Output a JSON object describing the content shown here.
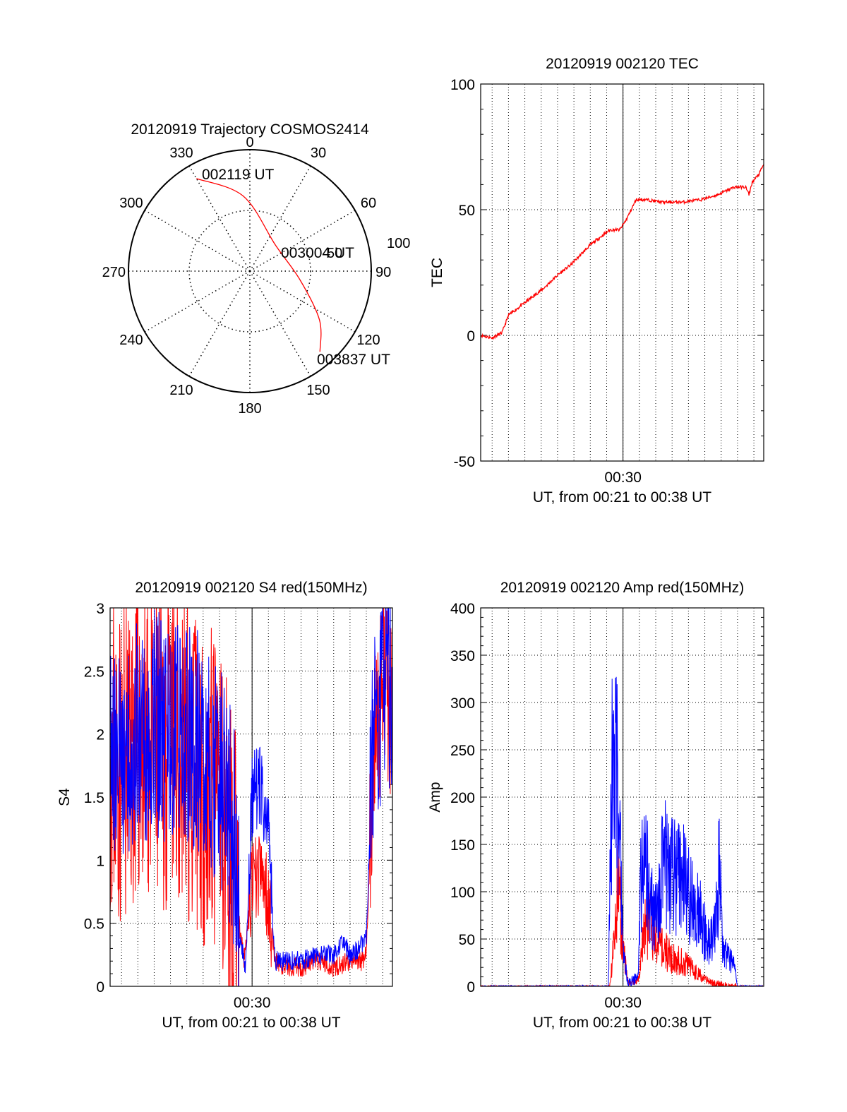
{
  "chart_data": [
    {
      "type": "polar",
      "title": "20120919 Trajectory COSMOS2414",
      "azimuth_labels": [
        "0",
        "30",
        "60",
        "90",
        "120",
        "150",
        "180",
        "210",
        "240",
        "270",
        "300",
        "330"
      ],
      "radial_labels": [
        "50",
        "100"
      ],
      "radial_range": [
        0,
        100
      ],
      "grid": true,
      "series": [
        {
          "color": "#ff0000",
          "points": [
            {
              "az": 330,
              "r": 88
            },
            {
              "az": 355,
              "r": 62
            },
            {
              "az": 45,
              "r": 30
            },
            {
              "az": 100,
              "r": 42
            },
            {
              "az": 125,
              "r": 70
            },
            {
              "az": 139,
              "r": 88
            }
          ]
        }
      ],
      "annotations": [
        {
          "text": "002119 UT",
          "az": 338,
          "r": 85
        },
        {
          "text": "003004 UT",
          "az": 75,
          "r": 34
        },
        {
          "text": "003837 UT",
          "az": 130,
          "r": 100
        }
      ]
    },
    {
      "type": "line",
      "title": "20120919 002120 TEC",
      "xlabel": "UT, from 00:21 to 00:38 UT",
      "ylabel": "TEC",
      "xlim": [
        21.3,
        38.6
      ],
      "ylim": [
        -50,
        100
      ],
      "x_ticks": [
        {
          "x": 30,
          "label": "00:30"
        }
      ],
      "y_ticks": [
        -50,
        0,
        50,
        100
      ],
      "grid": true,
      "series": [
        {
          "color": "#ff0000",
          "x": [
            21.3,
            22.0,
            22.6,
            23.0,
            23.6,
            24.4,
            25.2,
            26.0,
            26.8,
            27.4,
            28.0,
            28.6,
            29.2,
            29.8,
            30.2,
            30.8,
            31.4,
            32.4,
            33.6,
            34.8,
            35.8,
            36.8,
            37.5,
            37.7,
            37.9,
            38.3,
            38.6
          ],
          "y": [
            0,
            -1,
            1,
            8,
            11,
            15,
            19,
            24,
            28,
            32,
            36,
            39,
            42,
            42,
            46,
            54,
            54,
            53,
            53,
            54,
            56,
            59,
            59,
            56,
            61,
            64,
            68
          ]
        }
      ]
    },
    {
      "type": "line",
      "title": "20120919 002120 S4 red(150MHz)",
      "xlabel": "UT, from 00:21 to 00:38 UT",
      "ylabel": "S4",
      "xlim": [
        21.3,
        38.6
      ],
      "ylim": [
        0,
        3
      ],
      "x_ticks": [
        {
          "x": 30,
          "label": "00:30"
        }
      ],
      "y_ticks": [
        0,
        0.5,
        1,
        1.5,
        2,
        2.5,
        3
      ],
      "grid": true,
      "series": [
        {
          "color": "#ff0000",
          "x": [
            21.3,
            22.0,
            23.0,
            24.0,
            25.0,
            26.0,
            27.0,
            28.0,
            28.5,
            28.9,
            29.2,
            29.5,
            30.0,
            30.5,
            31.0,
            31.4,
            32.0,
            33.0,
            34.0,
            35.0,
            36.0,
            36.8,
            37.0,
            37.4,
            38.0,
            38.6
          ],
          "y": [
            1.9,
            1.7,
            2.0,
            1.8,
            1.9,
            1.8,
            1.6,
            1.5,
            1.2,
            0.9,
            0.5,
            0.2,
            0.8,
            0.9,
            0.7,
            0.2,
            0.15,
            0.15,
            0.2,
            0.15,
            0.2,
            0.2,
            0.3,
            1.6,
            2.5,
            2.2
          ]
        },
        {
          "color": "#0000ff",
          "x": [
            21.3,
            22.0,
            23.0,
            24.0,
            25.0,
            26.0,
            27.0,
            27.8,
            28.4,
            28.9,
            29.2,
            29.6,
            30.0,
            30.5,
            31.0,
            31.4,
            32.0,
            33.0,
            34.0,
            35.0,
            35.6,
            36.0,
            36.6,
            37.0,
            37.4,
            38.0,
            38.6
          ],
          "y": [
            1.8,
            1.9,
            2.0,
            2.1,
            2.0,
            2.0,
            1.9,
            1.7,
            1.5,
            1.2,
            0.4,
            0.15,
            1.5,
            1.6,
            1.2,
            0.2,
            0.2,
            0.2,
            0.25,
            0.25,
            0.35,
            0.25,
            0.3,
            0.4,
            1.9,
            2.3,
            2.4
          ]
        }
      ]
    },
    {
      "type": "line",
      "title": "20120919 002120 Amp red(150MHz)",
      "xlabel": "UT, from 00:21 to 00:38 UT",
      "ylabel": "Amp",
      "xlim": [
        21.3,
        38.6
      ],
      "ylim": [
        0,
        400
      ],
      "x_ticks": [
        {
          "x": 30,
          "label": "00:30"
        }
      ],
      "y_ticks": [
        0,
        50,
        100,
        150,
        200,
        250,
        300,
        350,
        400
      ],
      "grid": true,
      "series": [
        {
          "color": "#ff0000",
          "x": [
            21.3,
            28.0,
            29.2,
            29.5,
            29.7,
            30.0,
            30.3,
            30.8,
            31.0,
            31.3,
            31.6,
            32.2,
            33.0,
            34.0,
            35.0,
            35.5,
            36.0,
            36.3,
            38.6
          ],
          "y": [
            0,
            0,
            0,
            60,
            120,
            40,
            5,
            5,
            10,
            60,
            70,
            45,
            30,
            22,
            8,
            3,
            2,
            0,
            0
          ]
        },
        {
          "color": "#0000ff",
          "x": [
            21.3,
            28.0,
            29.1,
            29.3,
            29.5,
            29.8,
            30.0,
            30.3,
            30.6,
            30.9,
            31.1,
            31.4,
            31.7,
            32.0,
            32.5,
            33.0,
            33.6,
            34.2,
            34.8,
            35.2,
            35.6,
            35.9,
            36.1,
            36.4,
            36.7,
            37.0,
            38.6
          ],
          "y": [
            0,
            0,
            0,
            200,
            300,
            150,
            40,
            5,
            5,
            10,
            110,
            130,
            90,
            75,
            130,
            115,
            120,
            90,
            70,
            45,
            60,
            125,
            35,
            30,
            30,
            0,
            0
          ]
        }
      ]
    }
  ]
}
